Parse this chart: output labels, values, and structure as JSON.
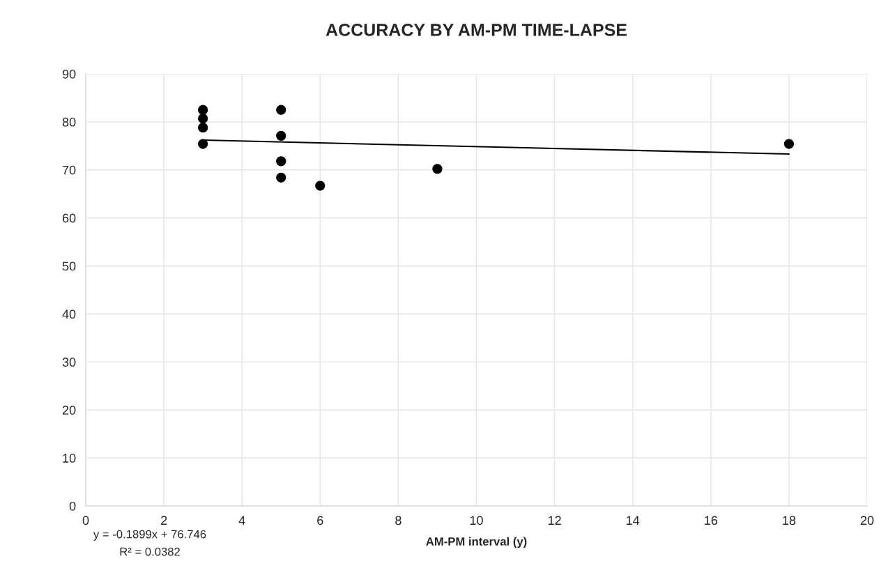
{
  "chart_data": {
    "type": "scatter",
    "title": "ACCURACY BY AM-PM TIME-LAPSE",
    "xlabel": "AM-PM interval (y)",
    "x": [
      3,
      3,
      3,
      3,
      5,
      5,
      5,
      5,
      6,
      9,
      18
    ],
    "series": [
      {
        "color": "#000000",
        "marker": "circle",
        "values": [
          82.5,
          80.7,
          78.8,
          75.4,
          82.5,
          77.1,
          71.8,
          68.4,
          66.7,
          70.2,
          75.4
        ]
      },
      {
        "type": "line",
        "color": "#000000",
        "marker": "none",
        "line_style": "solid",
        "x": [
          3,
          18
        ],
        "values": [
          76.2,
          73.3
        ]
      }
    ],
    "xlim": [
      0,
      20
    ],
    "xticks": [
      0,
      2,
      4,
      6,
      8,
      10,
      12,
      14,
      16,
      18,
      20
    ],
    "ylim": [
      0,
      90
    ],
    "yticks": [
      0,
      10,
      20,
      30,
      40,
      50,
      60,
      70,
      80,
      90
    ],
    "grid": true,
    "legend": false,
    "annotations": [
      "y = -0.1899x + 76.746",
      "R² = 0.0382"
    ]
  }
}
